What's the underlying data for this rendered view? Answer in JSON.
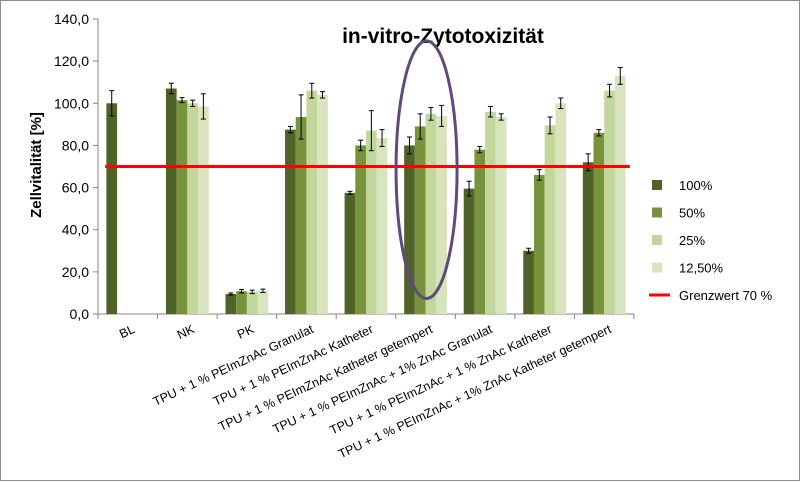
{
  "chart_data": {
    "type": "bar",
    "title": "in-vitro-Zytotoxizität",
    "ylabel": "Zellvitalität [%]",
    "xlabel": "",
    "ylim": [
      0,
      140
    ],
    "ytick_step": 20,
    "ytick_labels": [
      "0,0",
      "20,0",
      "40,0",
      "60,0",
      "80,0",
      "100,0",
      "120,0",
      "140,0"
    ],
    "grid": false,
    "legend_position": "right",
    "categories": [
      "BL",
      "NK",
      "PK",
      "TPU + 1 % PEImZnAc Granulat",
      "TPU + 1 % PEImZnAc Katheter",
      "TPU + 1 % PEImZnAc Katheter getempert",
      "TPU + 1 % PEImZnAc + 1% ZnAc Granulat",
      "TPU + 1 % PEImZnAc + 1 % ZnAc Katheter",
      "TPU + 1 % PEImZnAc + 1% ZnAc Katheter getempert"
    ],
    "series": [
      {
        "name": "100%",
        "color": "#4f6228",
        "values": [
          100,
          107,
          9.5,
          87.5,
          57.5,
          80,
          59.5,
          30,
          72
        ],
        "errors": [
          6,
          2.5,
          0.5,
          1.5,
          0.7,
          4,
          3.5,
          1.2,
          4
        ]
      },
      {
        "name": "50%",
        "color": "#77933c",
        "values": [
          null,
          101.5,
          10.8,
          93.5,
          80,
          89,
          78,
          66,
          86
        ],
        "errors": [
          null,
          1.2,
          0.8,
          10.5,
          2.5,
          6,
          1.5,
          2.5,
          1.5
        ]
      },
      {
        "name": "25%",
        "color": "#c3d69b",
        "values": [
          null,
          100,
          10.5,
          106,
          87,
          95,
          96,
          89.5,
          106
        ],
        "errors": [
          null,
          1.5,
          0.8,
          3.5,
          9.5,
          3,
          2.5,
          4,
          3
        ]
      },
      {
        "name": "12,50%",
        "color": "#d7e4bd",
        "values": [
          null,
          98.5,
          11,
          104,
          83.5,
          94,
          93.5,
          100,
          113
        ],
        "errors": [
          null,
          6,
          0.8,
          1.5,
          4,
          5,
          1.5,
          2.5,
          4
        ]
      }
    ],
    "threshold": {
      "name": "Grenzwert 70 %",
      "value": 70,
      "color": "#ff0000"
    },
    "highlight_category_index": 5,
    "highlight_color": "#604a7b"
  }
}
